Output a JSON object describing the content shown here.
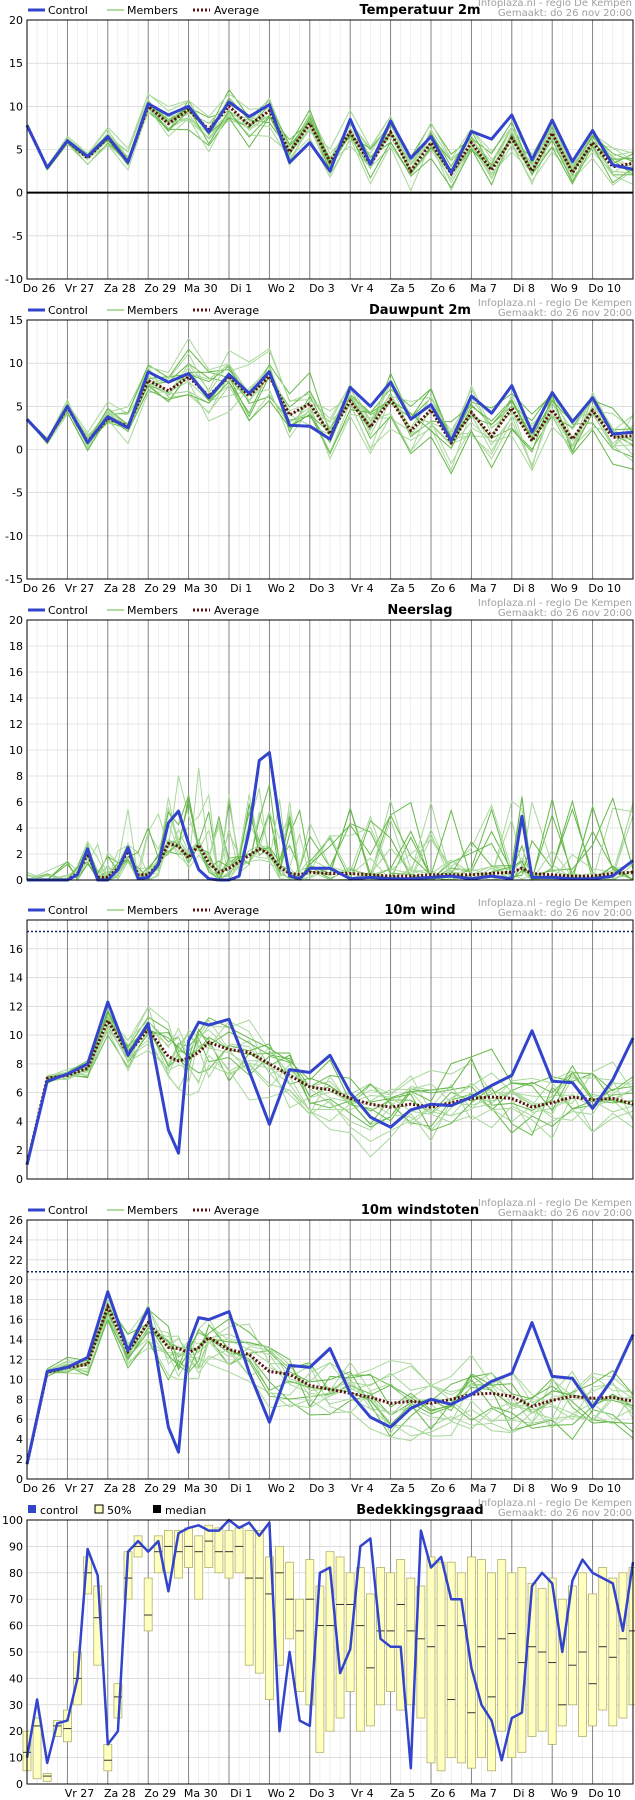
{
  "source": {
    "line1": "Infoplaza.nl - regio De Kempen",
    "line2": "Gemaakt: do 26 nov 20:00"
  },
  "days": [
    "Do 26",
    "Vr 27",
    "Za 28",
    "Zo 29",
    "Ma 30",
    "Di 1",
    "Wo 2",
    "Do 3",
    "Vr 4",
    "Za 5",
    "Zo 6",
    "Ma 7",
    "Di 8",
    "Wo 9",
    "Do 10"
  ],
  "colors": {
    "control": "#3344cc",
    "members": "#66b84a",
    "members_light": "#a8d89a",
    "average": "#5a1010",
    "bar_fill": "#ffffc0",
    "bar_stroke": "#b0b070",
    "grid": "#cccccc",
    "daygrid": "#777777"
  },
  "chart_data": [
    {
      "type": "line",
      "title": "Temperatuur 2m",
      "legend": [
        "Control",
        "Members",
        "Average"
      ],
      "ylim": [
        -10,
        20
      ],
      "yticks": [
        -10,
        -5,
        0,
        5,
        10,
        15,
        20
      ],
      "zero_line": true,
      "threshold": null,
      "x_days": [
        0,
        0.5,
        1,
        1.5,
        2,
        2.5,
        3,
        3.5,
        4,
        4.5,
        5,
        5.5,
        6,
        6.5,
        7,
        7.5,
        8,
        8.5,
        9,
        9.5,
        10,
        10.5,
        11,
        11.5,
        12,
        12.5,
        13,
        13.5,
        14,
        14.5,
        15
      ],
      "control": [
        7.8,
        2.9,
        6.0,
        4.2,
        6.5,
        3.5,
        10.3,
        9.0,
        10.0,
        7.0,
        10.5,
        8.8,
        10.2,
        3.5,
        5.8,
        2.5,
        8.5,
        3.3,
        8.3,
        4.0,
        6.5,
        2.3,
        7.1,
        6.2,
        9.0,
        3.8,
        8.4,
        3.6,
        7.2,
        3.2,
        2.7
      ],
      "average": [
        7.8,
        2.9,
        6.0,
        4.0,
        6.4,
        3.6,
        10.0,
        8.0,
        9.6,
        7.3,
        10.0,
        7.8,
        9.5,
        4.7,
        8.0,
        3.6,
        7.0,
        3.3,
        7.0,
        2.5,
        5.8,
        2.2,
        5.8,
        2.6,
        6.3,
        2.5,
        6.9,
        2.3,
        5.8,
        3.0,
        3.4
      ],
      "series_spread": 1.6
    },
    {
      "type": "line",
      "title": "Dauwpunt 2m",
      "legend": [
        "Control",
        "Members",
        "Average"
      ],
      "ylim": [
        -15,
        15
      ],
      "yticks": [
        -15,
        -10,
        -5,
        0,
        5,
        10,
        15
      ],
      "zero_line": false,
      "threshold": null,
      "x_days": [
        0,
        0.5,
        1,
        1.5,
        2,
        2.5,
        3,
        3.5,
        4,
        4.5,
        5,
        5.5,
        6,
        6.5,
        7,
        7.5,
        8,
        8.5,
        9,
        9.5,
        10,
        10.5,
        11,
        11.5,
        12,
        12.5,
        13,
        13.5,
        14,
        14.5,
        15
      ],
      "control": [
        3.5,
        1.0,
        5.0,
        0.8,
        3.8,
        2.5,
        9.0,
        7.8,
        8.8,
        6.0,
        8.7,
        6.5,
        9.0,
        2.8,
        2.7,
        1.2,
        7.2,
        5.0,
        7.8,
        3.5,
        5.2,
        1.0,
        6.2,
        4.2,
        7.4,
        2.0,
        6.6,
        3.2,
        6.0,
        1.8,
        2.0
      ],
      "average": [
        3.5,
        1.0,
        4.9,
        0.9,
        3.6,
        2.7,
        8.0,
        6.8,
        8.4,
        6.2,
        8.5,
        6.2,
        8.5,
        4.0,
        5.3,
        1.8,
        5.6,
        2.6,
        5.8,
        2.2,
        4.6,
        0.8,
        4.3,
        1.5,
        4.8,
        1.0,
        4.6,
        1.2,
        4.5,
        1.4,
        1.6
      ],
      "series_spread": 2.5
    },
    {
      "type": "line",
      "title": "Neerslag",
      "legend": [
        "Control",
        "Members",
        "Average"
      ],
      "ylim": [
        0,
        20
      ],
      "yticks": [
        0,
        2,
        4,
        6,
        8,
        10,
        12,
        14,
        16,
        18,
        20
      ],
      "zero_line": false,
      "threshold": null,
      "x_days": [
        0,
        0.5,
        1,
        1.25,
        1.5,
        1.75,
        2,
        2.25,
        2.5,
        2.75,
        3,
        3.25,
        3.5,
        3.75,
        4,
        4.25,
        4.5,
        4.75,
        5,
        5.25,
        5.5,
        5.75,
        6,
        6.25,
        6.5,
        6.75,
        7,
        7.5,
        8,
        8.5,
        9,
        9.5,
        10,
        10.5,
        11,
        11.5,
        12,
        12.25,
        12.5,
        13,
        13.5,
        14,
        14.5,
        15
      ],
      "control": [
        0,
        0,
        0,
        0.4,
        2.4,
        0,
        0,
        0.8,
        2.5,
        0.1,
        0.2,
        1.2,
        4.4,
        5.3,
        2.8,
        0.8,
        0.1,
        0,
        0,
        0.3,
        3.8,
        9.2,
        9.8,
        4.5,
        0.3,
        0.1,
        0.9,
        0.9,
        0.1,
        0.2,
        0.1,
        0.1,
        0.2,
        0.3,
        0.1,
        0.3,
        0.1,
        4.9,
        0.2,
        0.2,
        0.1,
        0.1,
        0.3,
        1.5
      ],
      "average": [
        0,
        0,
        0,
        0.5,
        2.0,
        0.2,
        0.2,
        0.9,
        2.2,
        0.4,
        0.4,
        1.2,
        2.8,
        2.6,
        1.7,
        2.7,
        1.3,
        0.6,
        0.9,
        1.4,
        1.9,
        2.4,
        2.0,
        1.0,
        0.5,
        0.4,
        0.6,
        0.5,
        0.5,
        0.4,
        0.3,
        0.3,
        0.4,
        0.4,
        0.4,
        0.5,
        0.6,
        0.9,
        0.5,
        0.4,
        0.3,
        0.3,
        0.5,
        0.6
      ],
      "series_spread": 1.2
    },
    {
      "type": "line",
      "title": "10m wind",
      "legend": [
        "Control",
        "Members",
        "Average"
      ],
      "ylim": [
        0,
        18
      ],
      "yticks": [
        0,
        2,
        4,
        6,
        8,
        10,
        12,
        14,
        16
      ],
      "zero_line": false,
      "threshold": 17.2,
      "x_days": [
        0,
        0.5,
        1,
        1.5,
        2,
        2.5,
        3,
        3.5,
        3.75,
        4,
        4.25,
        4.5,
        5,
        5.5,
        6,
        6.5,
        7,
        7.5,
        8,
        8.5,
        9,
        9.5,
        10,
        10.5,
        11,
        11.5,
        12,
        12.5,
        13,
        13.5,
        14,
        14.5,
        15
      ],
      "control": [
        1.0,
        6.8,
        7.3,
        8.0,
        12.3,
        8.6,
        10.8,
        3.4,
        1.8,
        9.6,
        10.9,
        10.7,
        11.1,
        7.5,
        3.8,
        7.6,
        7.4,
        8.6,
        6.0,
        4.3,
        3.6,
        4.8,
        5.2,
        5.1,
        5.7,
        6.5,
        7.2,
        10.3,
        6.8,
        6.7,
        4.9,
        6.9,
        9.8
      ],
      "average": [
        1.0,
        7.0,
        7.2,
        7.7,
        11.0,
        8.7,
        10.4,
        8.5,
        8.2,
        8.4,
        8.8,
        9.5,
        9.0,
        8.8,
        8.0,
        7.2,
        6.4,
        6.2,
        5.6,
        5.2,
        5.0,
        5.2,
        5.0,
        5.3,
        5.6,
        5.7,
        5.6,
        5.0,
        5.3,
        5.7,
        5.5,
        5.6,
        5.2
      ],
      "series_spread": 1.8
    },
    {
      "type": "line",
      "title": "10m windstoten",
      "legend": [
        "Control",
        "Members",
        "Average"
      ],
      "ylim": [
        0,
        26
      ],
      "yticks": [
        0,
        2,
        4,
        6,
        8,
        10,
        12,
        14,
        16,
        18,
        20,
        22,
        24,
        26
      ],
      "zero_line": false,
      "threshold": 20.8,
      "x_days": [
        0,
        0.5,
        1,
        1.5,
        2,
        2.5,
        3,
        3.5,
        3.75,
        4,
        4.25,
        4.5,
        5,
        5.5,
        6,
        6.5,
        7,
        7.5,
        8,
        8.5,
        9,
        9.5,
        10,
        10.5,
        11,
        11.5,
        12,
        12.5,
        13,
        13.5,
        14,
        14.5,
        15
      ],
      "control": [
        1.5,
        10.8,
        11.2,
        12.2,
        18.8,
        12.9,
        17.1,
        5.2,
        2.7,
        13.5,
        16.2,
        16.0,
        16.8,
        10.7,
        5.7,
        11.4,
        11.2,
        13.1,
        8.6,
        6.2,
        5.2,
        7.1,
        8.0,
        7.5,
        8.5,
        9.8,
        10.6,
        15.7,
        10.3,
        10.1,
        7.2,
        10.1,
        14.5
      ],
      "average": [
        1.5,
        10.7,
        11.2,
        11.5,
        17.3,
        12.8,
        15.7,
        13.2,
        13.1,
        12.7,
        13.2,
        14.2,
        13.0,
        12.5,
        10.8,
        10.5,
        9.4,
        9.0,
        8.6,
        8.2,
        7.6,
        7.8,
        7.6,
        8.0,
        8.5,
        8.6,
        8.3,
        7.3,
        7.9,
        8.3,
        8.1,
        8.2,
        7.8
      ],
      "series_spread": 2.6
    },
    {
      "type": "bar",
      "title": "Bedekkingsgraad",
      "legend": [
        "control",
        "50%",
        "median"
      ],
      "ylim": [
        0,
        100
      ],
      "yticks": [
        0,
        10,
        20,
        30,
        40,
        50,
        60,
        70,
        80,
        90,
        100
      ],
      "threshold": null,
      "control_x": [
        0,
        0.25,
        0.5,
        0.75,
        1,
        1.25,
        1.5,
        1.75,
        2,
        2.25,
        2.5,
        2.75,
        3,
        3.25,
        3.5,
        3.75,
        4,
        4.25,
        4.5,
        4.75,
        5,
        5.25,
        5.5,
        5.75,
        6,
        6.25,
        6.5,
        6.75,
        7,
        7.25,
        7.5,
        7.75,
        8,
        8.25,
        8.5,
        8.75,
        9,
        9.25,
        9.5,
        9.75,
        10,
        10.25,
        10.5,
        10.75,
        11,
        11.25,
        11.5,
        11.75,
        12,
        12.25,
        12.5,
        12.75,
        13,
        13.25,
        13.5,
        13.75,
        14,
        14.25,
        14.5,
        14.75,
        15
      ],
      "control": [
        10,
        32,
        8,
        23,
        24,
        40,
        89,
        79,
        15,
        20,
        88,
        92,
        88,
        92,
        73,
        95,
        97,
        98,
        96,
        96,
        100,
        97,
        99,
        94,
        99,
        20,
        50,
        24,
        22,
        80,
        82,
        42,
        51,
        90,
        93,
        55,
        52,
        52,
        6,
        96,
        82,
        86,
        70,
        70,
        44,
        30,
        24,
        9,
        25,
        27,
        75,
        80,
        76,
        50,
        77,
        85,
        80,
        78,
        76,
        58,
        84
      ],
      "bars": [
        {
          "x": 0.0,
          "lo": 5,
          "hi": 20,
          "med": 12
        },
        {
          "x": 0.25,
          "lo": 2,
          "hi": 25,
          "med": 22
        },
        {
          "x": 0.5,
          "lo": 1,
          "hi": 4,
          "med": 3
        },
        {
          "x": 0.75,
          "lo": 18,
          "hi": 24,
          "med": 22
        },
        {
          "x": 1.0,
          "lo": 16,
          "hi": 28,
          "med": 21
        },
        {
          "x": 1.25,
          "lo": 30,
          "hi": 50,
          "med": 40
        },
        {
          "x": 1.5,
          "lo": 72,
          "hi": 86,
          "med": 80
        },
        {
          "x": 1.75,
          "lo": 45,
          "hi": 75,
          "med": 63
        },
        {
          "x": 2.0,
          "lo": 5,
          "hi": 15,
          "med": 9
        },
        {
          "x": 2.25,
          "lo": 25,
          "hi": 38,
          "med": 33
        },
        {
          "x": 2.5,
          "lo": 70,
          "hi": 88,
          "med": 78
        },
        {
          "x": 2.75,
          "lo": 86,
          "hi": 94,
          "med": 90
        },
        {
          "x": 3.0,
          "lo": 58,
          "hi": 78,
          "med": 64
        },
        {
          "x": 3.25,
          "lo": 80,
          "hi": 94,
          "med": 88
        },
        {
          "x": 3.5,
          "lo": 80,
          "hi": 96,
          "med": 90
        },
        {
          "x": 3.75,
          "lo": 78,
          "hi": 96,
          "med": 88
        },
        {
          "x": 4.0,
          "lo": 82,
          "hi": 97,
          "med": 90
        },
        {
          "x": 4.25,
          "lo": 70,
          "hi": 94,
          "med": 88
        },
        {
          "x": 4.5,
          "lo": 82,
          "hi": 98,
          "med": 92
        },
        {
          "x": 4.75,
          "lo": 80,
          "hi": 97,
          "med": 88
        },
        {
          "x": 5.0,
          "lo": 78,
          "hi": 96,
          "med": 88
        },
        {
          "x": 5.25,
          "lo": 80,
          "hi": 97,
          "med": 90
        },
        {
          "x": 5.5,
          "lo": 45,
          "hi": 96,
          "med": 78
        },
        {
          "x": 5.75,
          "lo": 42,
          "hi": 96,
          "med": 78
        },
        {
          "x": 6.0,
          "lo": 32,
          "hi": 86,
          "med": 72
        },
        {
          "x": 6.25,
          "lo": 45,
          "hi": 90,
          "med": 80
        },
        {
          "x": 6.5,
          "lo": 55,
          "hi": 84,
          "med": 70
        },
        {
          "x": 6.75,
          "lo": 35,
          "hi": 70,
          "med": 58
        },
        {
          "x": 7.0,
          "lo": 30,
          "hi": 85,
          "med": 70
        },
        {
          "x": 7.25,
          "lo": 12,
          "hi": 75,
          "med": 60
        },
        {
          "x": 7.5,
          "lo": 20,
          "hi": 88,
          "med": 60
        },
        {
          "x": 7.75,
          "lo": 25,
          "hi": 86,
          "med": 68
        },
        {
          "x": 8.0,
          "lo": 35,
          "hi": 80,
          "med": 68
        },
        {
          "x": 8.25,
          "lo": 20,
          "hi": 82,
          "med": 60
        },
        {
          "x": 8.5,
          "lo": 22,
          "hi": 72,
          "med": 44
        },
        {
          "x": 8.75,
          "lo": 30,
          "hi": 82,
          "med": 58
        },
        {
          "x": 9.0,
          "lo": 35,
          "hi": 80,
          "med": 58
        },
        {
          "x": 9.25,
          "lo": 28,
          "hi": 85,
          "med": 68
        },
        {
          "x": 9.5,
          "lo": 30,
          "hi": 78,
          "med": 58
        },
        {
          "x": 9.75,
          "lo": 25,
          "hi": 75,
          "med": 55
        },
        {
          "x": 10.0,
          "lo": 8,
          "hi": 86,
          "med": 52
        },
        {
          "x": 10.25,
          "lo": 5,
          "hi": 84,
          "med": 60
        },
        {
          "x": 10.5,
          "lo": 10,
          "hi": 84,
          "med": 32
        },
        {
          "x": 10.75,
          "lo": 8,
          "hi": 80,
          "med": 60
        },
        {
          "x": 11.0,
          "lo": 6,
          "hi": 86,
          "med": 27
        },
        {
          "x": 11.25,
          "lo": 10,
          "hi": 85,
          "med": 52
        },
        {
          "x": 11.5,
          "lo": 5,
          "hi": 80,
          "med": 33
        },
        {
          "x": 11.75,
          "lo": 20,
          "hi": 85,
          "med": 55
        },
        {
          "x": 12.0,
          "lo": 10,
          "hi": 80,
          "med": 57
        },
        {
          "x": 12.25,
          "lo": 12,
          "hi": 82,
          "med": 46
        },
        {
          "x": 12.5,
          "lo": 18,
          "hi": 76,
          "med": 52
        },
        {
          "x": 12.75,
          "lo": 20,
          "hi": 74,
          "med": 50
        },
        {
          "x": 13.0,
          "lo": 15,
          "hi": 78,
          "med": 46
        },
        {
          "x": 13.25,
          "lo": 22,
          "hi": 70,
          "med": 30
        },
        {
          "x": 13.5,
          "lo": 30,
          "hi": 75,
          "med": 45
        },
        {
          "x": 13.75,
          "lo": 18,
          "hi": 80,
          "med": 50
        },
        {
          "x": 14.0,
          "lo": 22,
          "hi": 72,
          "med": 38
        },
        {
          "x": 14.25,
          "lo": 28,
          "hi": 82,
          "med": 52
        },
        {
          "x": 14.5,
          "lo": 22,
          "hi": 78,
          "med": 48
        },
        {
          "x": 14.75,
          "lo": 25,
          "hi": 80,
          "med": 55
        },
        {
          "x": 15.0,
          "lo": 30,
          "hi": 82,
          "med": 58
        }
      ]
    }
  ]
}
